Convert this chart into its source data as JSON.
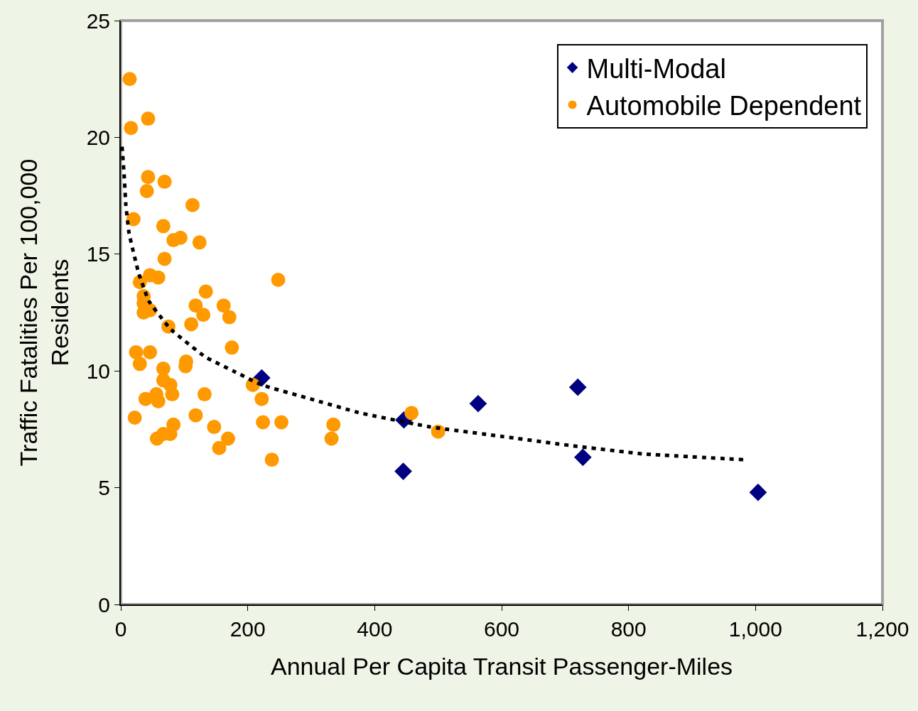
{
  "chart_data": {
    "type": "scatter",
    "xlabel": "Annual Per Capita Transit Passenger-Miles",
    "ylabel": "Traffic Fatalities Per 100,000\nResidents",
    "xlim": [
      0,
      1200
    ],
    "xticks": [
      0,
      200,
      400,
      600,
      800,
      {
        "value": 1000,
        "label": "1,000"
      },
      {
        "value": 1200,
        "label": "1,200"
      }
    ],
    "ylim": [
      0,
      25
    ],
    "yticks": [
      0,
      5,
      10,
      15,
      20,
      25
    ],
    "grid": false,
    "legend": "top right",
    "series": [
      {
        "name": "Multi-Modal",
        "color": "#000080",
        "marker": "diamond",
        "x": [
          222,
          446,
          445,
          563,
          720,
          728,
          1004
        ],
        "values": [
          9.7,
          7.9,
          5.7,
          8.6,
          9.3,
          6.3,
          4.8
        ]
      },
      {
        "name": "Automobile Dependent",
        "color": "#ff9900",
        "marker": "circle",
        "x": [
          14,
          16,
          43,
          43,
          41,
          69,
          20,
          113,
          67,
          83,
          94,
          124,
          69,
          46,
          59,
          30,
          36,
          36,
          46,
          36,
          75,
          134,
          118,
          130,
          111,
          162,
          171,
          248,
          175,
          24,
          46,
          30,
          67,
          103,
          102,
          67,
          78,
          81,
          39,
          56,
          59,
          132,
          22,
          118,
          83,
          78,
          57,
          67,
          147,
          169,
          155,
          208,
          222,
          224,
          253,
          238,
          335,
          332,
          458,
          500
        ],
        "values": [
          22.5,
          20.4,
          20.8,
          18.3,
          17.7,
          18.1,
          16.5,
          17.1,
          16.2,
          15.6,
          15.7,
          15.5,
          14.8,
          14.1,
          14.0,
          13.8,
          13.2,
          12.9,
          12.6,
          12.5,
          11.9,
          13.4,
          12.8,
          12.4,
          12.0,
          12.8,
          12.3,
          13.9,
          11.0,
          10.8,
          10.8,
          10.3,
          10.1,
          10.4,
          10.2,
          9.6,
          9.4,
          9.0,
          8.8,
          9.0,
          8.7,
          9.0,
          8.0,
          8.1,
          7.7,
          7.3,
          7.1,
          7.3,
          7.6,
          7.1,
          6.7,
          9.4,
          8.8,
          7.8,
          7.8,
          6.2,
          7.7,
          7.1,
          8.2,
          7.4
        ]
      },
      {
        "type": "line",
        "color": "#000000",
        "line_style": "dashed",
        "x": [
          2,
          5.5,
          8,
          13,
          28,
          44,
          78,
          133,
          177,
          222,
          299,
          377,
          488,
          599,
          710,
          821,
          981
        ],
        "values": [
          19.6,
          18.3,
          17.1,
          15.9,
          14.2,
          13.0,
          11.8,
          10.6,
          10.0,
          9.4,
          8.8,
          8.2,
          7.6,
          7.2,
          6.8,
          6.45,
          6.2
        ]
      }
    ]
  }
}
